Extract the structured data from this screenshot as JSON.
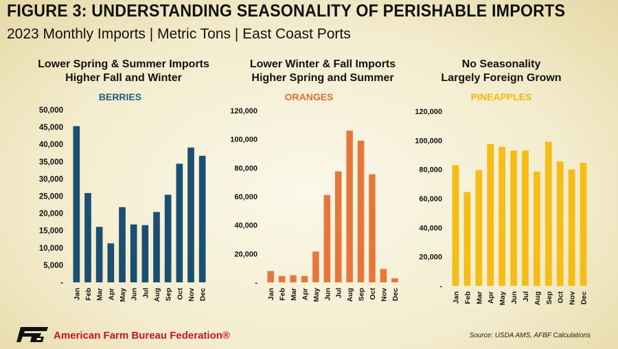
{
  "figure": {
    "title": "FIGURE 3: UNDERSTANDING SEASONALITY OF PERISHABLE IMPORTS",
    "subtitle": "2023 Monthly Imports | Metric Tons | East Coast Ports"
  },
  "panels": [
    {
      "heading_line1": "Lower Spring & Summer Imports",
      "heading_line2": "Higher Fall and Winter"
    },
    {
      "heading_line1": "Lower Winter & Fall Imports",
      "heading_line2": "Higher Spring and Summer"
    },
    {
      "heading_line1": "No Seasonality",
      "heading_line2": "Largely Foreign Grown"
    }
  ],
  "chart_data": [
    {
      "type": "bar",
      "title": "BERRIES",
      "title_color": "#1f5e82",
      "bar_color": "#1b4f72",
      "categories": [
        "Jan",
        "Feb",
        "Mar",
        "Apr",
        "May",
        "Jun",
        "Jul",
        "Aug",
        "Sep",
        "Oct",
        "Nov",
        "Dec"
      ],
      "values": [
        45300,
        25900,
        16100,
        11300,
        21800,
        16800,
        16600,
        20400,
        25400,
        34400,
        39100,
        36700
      ],
      "ylim": [
        0,
        50000
      ],
      "yticks": [
        0,
        5000,
        10000,
        15000,
        20000,
        25000,
        30000,
        35000,
        40000,
        45000,
        50000
      ],
      "ytick_labels": [
        "-",
        "5,000",
        "10,000",
        "15,000",
        "20,000",
        "25,000",
        "30,000",
        "35,000",
        "40,000",
        "45,000",
        "50,000"
      ],
      "xlabel": "",
      "ylabel": "",
      "grid": false
    },
    {
      "type": "bar",
      "title": "ORANGES",
      "title_color": "#e56b2e",
      "bar_color": "#e8763a",
      "categories": [
        "Jan",
        "Feb",
        "Mar",
        "Apr",
        "May",
        "Jun",
        "Jul",
        "Aug",
        "Sep",
        "Oct",
        "Nov",
        "Dec"
      ],
      "values": [
        7900,
        4500,
        5000,
        4500,
        21500,
        61000,
        77500,
        106000,
        99000,
        75500,
        9300,
        2800
      ],
      "ylim": [
        0,
        120000
      ],
      "yticks": [
        0,
        20000,
        40000,
        60000,
        80000,
        100000,
        120000
      ],
      "ytick_labels": [
        "-",
        "20,000",
        "40,000",
        "60,000",
        "80,000",
        "100,000",
        "120,000"
      ],
      "xlabel": "",
      "ylabel": "",
      "grid": false
    },
    {
      "type": "bar",
      "title": "PINEAPPLES",
      "title_color": "#f5b800",
      "bar_color": "#f6bd16",
      "categories": [
        "Jan",
        "Feb",
        "Mar",
        "Apr",
        "May",
        "Jun",
        "Jul",
        "Aug",
        "Sep",
        "Oct",
        "Nov",
        "Dec"
      ],
      "values": [
        83000,
        64500,
        79500,
        97500,
        95500,
        93000,
        93000,
        78500,
        99000,
        85500,
        80000,
        84500
      ],
      "ylim": [
        0,
        120000
      ],
      "yticks": [
        0,
        20000,
        40000,
        60000,
        80000,
        100000,
        120000
      ],
      "ytick_labels": [
        "-",
        "20,000",
        "40,000",
        "60,000",
        "80,000",
        "100,000",
        "120,000"
      ],
      "xlabel": "",
      "ylabel": "",
      "grid": false
    }
  ],
  "footer": {
    "logo_icon": "afbf-logo-icon",
    "organization": "American Farm Bureau Federation®",
    "source": "Source: USDA AMS, AFBF Calculations"
  }
}
